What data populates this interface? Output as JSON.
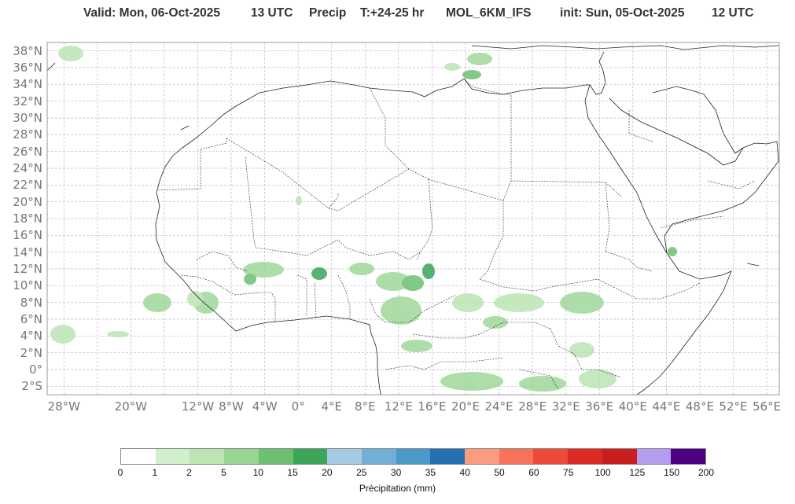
{
  "header": {
    "valid": "Valid: Mon, 06-Oct-2025",
    "utc": "13 UTC",
    "field": "Precip",
    "lead": "T:+24-25 hr",
    "model": "MOL_6KM_IFS",
    "init": "init: Sun, 05-Oct-2025",
    "init_utc": "12 UTC"
  },
  "map": {
    "lat_labels": [
      "38°N",
      "36°N",
      "34°N",
      "32°N",
      "30°N",
      "28°N",
      "26°N",
      "24°N",
      "22°N",
      "20°N",
      "18°N",
      "16°N",
      "14°N",
      "12°N",
      "10°N",
      "8°N",
      "6°N",
      "4°N",
      "2°N",
      "0°",
      "2°S"
    ],
    "lon_labels": [
      "28°W",
      "20°W",
      "12°W",
      "8°W",
      "4°W",
      "0°",
      "4°E",
      "8°E",
      "12°E",
      "16°E",
      "20°E",
      "24°E",
      "28°E",
      "32°E",
      "36°E",
      "40°E",
      "44°E",
      "48°E",
      "52°E",
      "56°E"
    ]
  },
  "colorbar": {
    "colors": [
      "#ffffff",
      "#d2efcd",
      "#bce4b5",
      "#98d593",
      "#6cc070",
      "#3ca55a",
      "#a4cbe3",
      "#72aed6",
      "#4b98c9",
      "#2470b1",
      "#fb9b80",
      "#f77259",
      "#ee4a3a",
      "#dd2a25",
      "#c81e1e",
      "#b49def",
      "#4c0282"
    ],
    "ticks": [
      "0",
      "1",
      "2",
      "5",
      "10",
      "15",
      "20",
      "25",
      "30",
      "35",
      "40",
      "50",
      "60",
      "75",
      "100",
      "125",
      "150",
      "200"
    ],
    "label": "Précipitation (mm)"
  }
}
